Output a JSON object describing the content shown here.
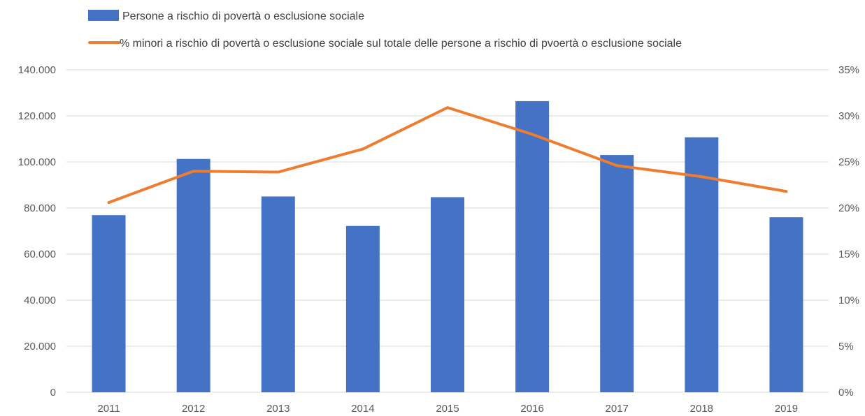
{
  "chart_data": {
    "type": "bar",
    "categories": [
      "2011",
      "2012",
      "2013",
      "2014",
      "2015",
      "2016",
      "2017",
      "2018",
      "2019"
    ],
    "series": [
      {
        "name": "Persone a rischio di povertà o esclusione sociale",
        "type": "bar",
        "axis": "left",
        "color": "#4472C4",
        "values": [
          76900,
          101300,
          85000,
          72200,
          84700,
          126400,
          103000,
          110700,
          76000
        ]
      },
      {
        "name": "% minori a rischio di povertà o esclusione sociale sul totale delle persone a rischio di pvoertà o esclusione sociale",
        "type": "line",
        "axis": "right",
        "color": "#ED7D31",
        "values": [
          20.6,
          24.0,
          23.9,
          26.4,
          30.9,
          28.0,
          24.6,
          23.4,
          21.8
        ]
      }
    ],
    "y_left": {
      "range": [
        0,
        140000
      ],
      "tick_values": [
        0,
        20000,
        40000,
        60000,
        80000,
        100000,
        120000,
        140000
      ],
      "tick_labels": [
        "0",
        "20.000",
        "40.000",
        "60.000",
        "80.000",
        "100.000",
        "120.000",
        "140.000"
      ]
    },
    "y_right": {
      "range": [
        0,
        35
      ],
      "tick_labels": [
        "0%",
        "5%",
        "10%",
        "15%",
        "20%",
        "25%",
        "30%",
        "35%"
      ]
    },
    "title": "",
    "xlabel": "",
    "grid": "horizontal",
    "legend_position": "top-left",
    "gridline_color": "#D9D9D9"
  }
}
